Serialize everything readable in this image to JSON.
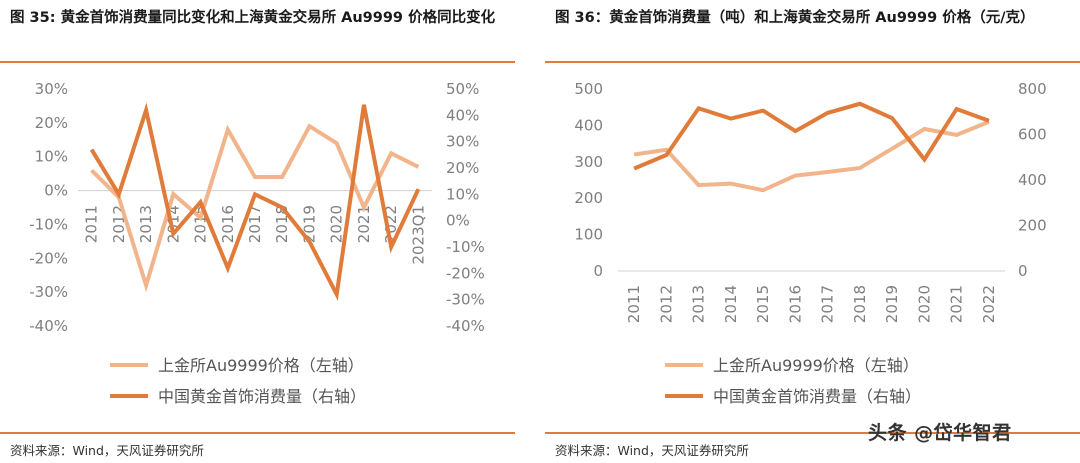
{
  "left": {
    "title": "图 35: 黄金首饰消费量同比变化和上海黄金交易所 Au9999 价格同比变化",
    "source": "资料来源：Wind，天风证券研究所"
  },
  "right": {
    "title": "图 36：黄金首饰消费量（吨）和上海黄金交易所 Au9999 价格（元/克）",
    "source": "资料来源：Wind，天风证券研究所"
  },
  "watermark": "头条 @岱华智君",
  "colors": {
    "price": "#F2B48A",
    "consumption": "#E07B39",
    "accent": "#E07B39"
  },
  "chart_data": [
    {
      "type": "line",
      "categories": [
        "2011",
        "2012",
        "2013",
        "2014",
        "2015",
        "2016",
        "2017",
        "2018",
        "2019",
        "2020",
        "2021",
        "2022",
        "2023Q1"
      ],
      "series": [
        {
          "name": "上金所Au9999价格（左轴）",
          "axis": "left",
          "values": [
            6,
            -2,
            -28,
            -1,
            -8,
            18,
            4,
            4,
            19,
            14,
            -5,
            11,
            7
          ]
        },
        {
          "name": "中国黄金首饰消费量（右轴）",
          "axis": "right",
          "values": [
            27,
            10,
            42,
            -5,
            7,
            -18,
            10,
            5,
            -8,
            -28,
            44,
            -10,
            12
          ]
        }
      ],
      "y_left": {
        "min": -40,
        "max": 30,
        "step": 10,
        "ticks": [
          "30%",
          "20%",
          "10%",
          "0%",
          "-10%",
          "-20%",
          "-30%",
          "-40%"
        ]
      },
      "y_right": {
        "min": -40,
        "max": 50,
        "step": 10,
        "ticks": [
          "50%",
          "40%",
          "30%",
          "20%",
          "10%",
          "0%",
          "-10%",
          "-20%",
          "-30%",
          "-40%"
        ]
      },
      "legend_placement": "bottom",
      "grid": false
    },
    {
      "type": "line",
      "categories": [
        "2011",
        "2012",
        "2013",
        "2014",
        "2015",
        "2016",
        "2017",
        "2018",
        "2019",
        "2020",
        "2021",
        "2022"
      ],
      "series": [
        {
          "name": "上金所Au9999价格（左轴）",
          "axis": "left",
          "values": [
            320,
            333,
            236,
            240,
            222,
            262,
            272,
            283,
            336,
            390,
            374,
            410
          ]
        },
        {
          "name": "中国黄金首饰消费量（右轴）",
          "axis": "right",
          "values": [
            450,
            510,
            715,
            670,
            705,
            615,
            695,
            735,
            672,
            490,
            712,
            660
          ]
        }
      ],
      "y_left": {
        "min": 0,
        "max": 500,
        "step": 100,
        "ticks": [
          "500",
          "400",
          "300",
          "200",
          "100",
          "0"
        ]
      },
      "y_right": {
        "min": 0,
        "max": 800,
        "step": 200,
        "ticks": [
          "800",
          "600",
          "400",
          "200",
          "0"
        ]
      },
      "legend_placement": "bottom",
      "grid": false
    }
  ]
}
